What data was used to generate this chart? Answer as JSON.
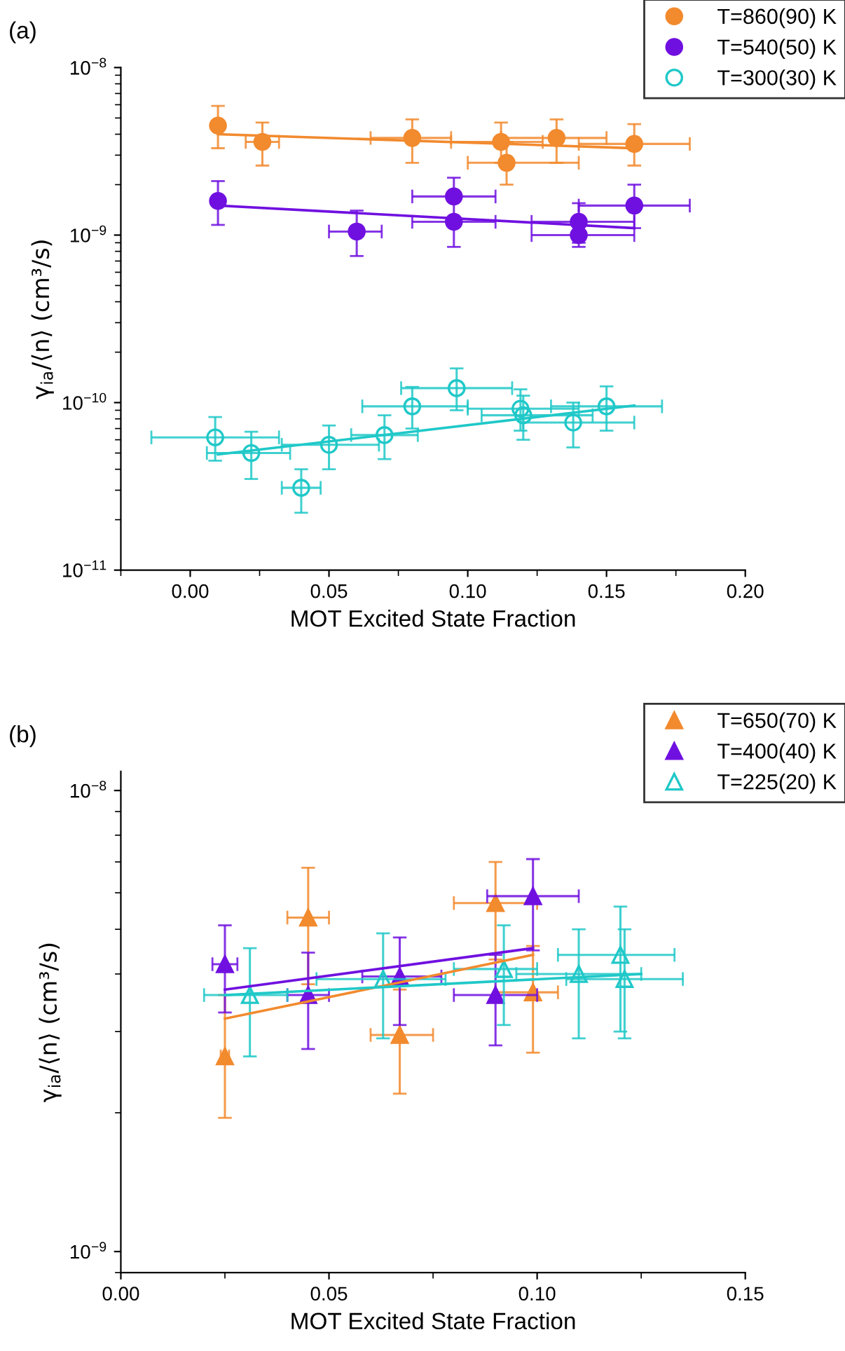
{
  "chart_data": [
    {
      "type": "scatter",
      "title": "(a)",
      "xlabel": "MOT Excited State Fraction",
      "ylabel": "γ$_{ia}$/⟨n⟩ (cm³/s)",
      "log": "y",
      "legend": "top right",
      "marker": "circle",
      "xlim": [
        -0.025,
        0.2
      ],
      "xticks": [
        {
          "value": 0,
          "label": "0.00"
        },
        {
          "value": 0.05,
          "label": "0.05"
        },
        {
          "value": 0.1,
          "label": "0.10"
        },
        {
          "value": 0.15,
          "label": "0.15"
        },
        {
          "value": 0.2,
          "label": "0.20"
        }
      ],
      "ylim": [
        1e-11,
        1e-08
      ],
      "yticks": [
        {
          "value": 1e-11,
          "label": "10$^{−11}$"
        },
        {
          "value": 1e-10,
          "label": "10$^{−10}$"
        },
        {
          "value": 1e-09,
          "label": "10$^{−9}$"
        },
        {
          "value": 1e-08,
          "label": "10$^{−8}$"
        }
      ],
      "series": [
        {
          "name": "T=860(90) K",
          "color": "#f28a2e",
          "x": [
            0.01,
            0.026,
            0.08,
            0.112,
            0.114,
            0.132,
            0.16
          ],
          "values": [
            4.5e-09,
            3.6e-09,
            3.8e-09,
            3.6e-09,
            2.7e-09,
            3.8e-09,
            3.5e-09
          ],
          "errors": [
            [
              3.3e-09,
              5.9e-09
            ],
            [
              2.6e-09,
              4.7e-09
            ],
            [
              2.7e-09,
              4.9e-09
            ],
            [
              2.7e-09,
              4.7e-09
            ],
            [
              2e-09,
              3.6e-09
            ],
            [
              2.7e-09,
              4.9e-09
            ],
            [
              2.6e-09,
              4.6e-09
            ]
          ],
          "xerrors": [
            null,
            [
              0.02,
              0.032
            ],
            [
              0.065,
              0.094
            ],
            [
              0.094,
              0.127
            ],
            [
              0.1,
              0.14
            ],
            [
              0.112,
              0.15
            ],
            [
              0.14,
              0.18
            ]
          ]
        },
        {
          "name": "T=540(50) K",
          "color": "#7010e0",
          "x": [
            0.01,
            0.06,
            0.095,
            0.095,
            0.14,
            0.14,
            0.16
          ],
          "values": [
            1.6e-09,
            1.05e-09,
            1.7e-09,
            1.2e-09,
            1.2e-09,
            1e-09,
            1.5e-09
          ],
          "errors": [
            [
              1.15e-09,
              2.1e-09
            ],
            [
              7.5e-10,
              1.4e-09
            ],
            [
              1.7e-09,
              2.2e-09
            ],
            [
              8.5e-10,
              1.6e-09
            ],
            [
              9e-10,
              1.55e-09
            ],
            [
              8.5e-10,
              1e-09
            ],
            [
              1.1e-09,
              2e-09
            ]
          ],
          "xerrors": [
            null,
            [
              0.05,
              0.069
            ],
            [
              0.08,
              0.11
            ],
            [
              0.08,
              0.11
            ],
            [
              0.123,
              0.16
            ],
            [
              0.123,
              0.16
            ],
            [
              0.14,
              0.18
            ]
          ]
        },
        {
          "name": "T=300(30) K",
          "color": "#20c8c8",
          "x": [
            0.009,
            0.022,
            0.04,
            0.05,
            0.07,
            0.08,
            0.096,
            0.119,
            0.12,
            0.138,
            0.15
          ],
          "values": [
            6.2e-11,
            5e-11,
            3.1e-11,
            5.6e-11,
            6.4e-11,
            9.5e-11,
            1.22e-10,
            9.2e-11,
            8.4e-11,
            7.6e-11,
            9.5e-11
          ],
          "errors": [
            [
              4.5e-11,
              8.2e-11
            ],
            [
              3.5e-11,
              6.7e-11
            ],
            [
              2.2e-11,
              4e-11
            ],
            [
              4e-11,
              7.3e-11
            ],
            [
              4.6e-11,
              8.4e-11
            ],
            [
              7e-11,
              1.24e-10
            ],
            [
              9e-11,
              1.6e-10
            ],
            [
              6.8e-11,
              1.2e-10
            ],
            [
              6e-11,
              1.1e-10
            ],
            [
              5.4e-11,
              1e-10
            ],
            [
              6.8e-11,
              1.25e-10
            ]
          ],
          "xerrors": [
            [
              -0.014,
              0.032
            ],
            [
              0.006,
              0.036
            ],
            [
              0.033,
              0.047
            ],
            [
              0.033,
              0.068
            ],
            [
              0.058,
              0.082
            ],
            [
              0.062,
              0.1
            ],
            [
              0.076,
              0.116
            ],
            [
              0.1,
              0.14
            ],
            [
              0.105,
              0.145
            ],
            [
              0.12,
              0.16
            ],
            [
              0.13,
              0.17
            ]
          ]
        },
        {
          "type": "line",
          "marker": "none",
          "color": "#f28a2e",
          "x": [
            0.01,
            0.16
          ],
          "values": [
            4e-09,
            3.3e-09
          ]
        },
        {
          "type": "line",
          "marker": "none",
          "color": "#7010e0",
          "x": [
            0.01,
            0.16
          ],
          "values": [
            1.5e-09,
            1.1e-09
          ]
        },
        {
          "type": "line",
          "marker": "none",
          "color": "#20c8c8",
          "x": [
            0.01,
            0.16
          ],
          "values": [
            4.9e-11,
            9.6e-11
          ]
        }
      ]
    },
    {
      "type": "scatter",
      "title": "(b)",
      "xlabel": "MOT Excited State Fraction",
      "ylabel": "γ$_{ia}$/⟨n⟩ (cm³/s)",
      "log": "y",
      "legend": "top right",
      "marker": "triangle",
      "xlim": [
        0,
        0.15
      ],
      "xticks": [
        {
          "value": 0,
          "label": "0.00"
        },
        {
          "value": 0.05,
          "label": "0.05"
        },
        {
          "value": 0.1,
          "label": "0.10"
        },
        {
          "value": 0.15,
          "label": "0.15"
        }
      ],
      "ylim": [
        9e-10,
        1.1e-08
      ],
      "yticks": [
        {
          "value": 1e-09,
          "label": "10$^{−9}$"
        },
        {
          "value": 1e-08,
          "label": "10$^{−8}$"
        }
      ],
      "series": [
        {
          "name": "T=650(70) K",
          "color": "#f28a2e",
          "x": [
            0.025,
            0.045,
            0.067,
            0.09,
            0.099
          ],
          "values": [
            2.65e-09,
            5.3e-09,
            2.95e-09,
            5.7e-09,
            3.65e-09
          ],
          "errors": [
            [
              1.95e-09,
              3.6e-09
            ],
            [
              3.8e-09,
              6.8e-09
            ],
            [
              2.2e-09,
              3.7e-09
            ],
            [
              4.3e-09,
              7e-09
            ],
            [
              2.7e-09,
              4.6e-09
            ]
          ],
          "xerrors": [
            [
              0.024,
              0.026
            ],
            [
              0.04,
              0.05
            ],
            [
              0.06,
              0.075
            ],
            [
              0.08,
              0.1
            ],
            [
              0.09,
              0.105
            ]
          ]
        },
        {
          "name": "T=400(40) K",
          "color": "#7010e0",
          "x": [
            0.025,
            0.045,
            0.067,
            0.09,
            0.099
          ],
          "values": [
            4.2e-09,
            3.6e-09,
            3.95e-09,
            3.6e-09,
            5.9e-09
          ],
          "errors": [
            [
              3.3e-09,
              5.1e-09
            ],
            [
              2.75e-09,
              4.45e-09
            ],
            [
              3.1e-09,
              4.8e-09
            ],
            [
              2.8e-09,
              4.4e-09
            ],
            [
              4.5e-09,
              7.1e-09
            ]
          ],
          "xerrors": [
            [
              0.022,
              0.028
            ],
            [
              0.04,
              0.05
            ],
            [
              0.058,
              0.077
            ],
            [
              0.08,
              0.1
            ],
            [
              0.088,
              0.11
            ]
          ]
        },
        {
          "name": "T=225(20) K",
          "color": "#20c8c8",
          "x": [
            0.031,
            0.063,
            0.092,
            0.11,
            0.12,
            0.121
          ],
          "values": [
            3.6e-09,
            3.9e-09,
            4.1e-09,
            4e-09,
            4.4e-09,
            3.9e-09
          ],
          "errors": [
            [
              2.65e-09,
              4.55e-09
            ],
            [
              2.9e-09,
              4.9e-09
            ],
            [
              3.1e-09,
              5.1e-09
            ],
            [
              2.9e-09,
              5e-09
            ],
            [
              3e-09,
              5.6e-09
            ],
            [
              2.9e-09,
              5e-09
            ]
          ],
          "xerrors": [
            [
              0.02,
              0.04
            ],
            [
              0.047,
              0.078
            ],
            [
              0.08,
              0.1
            ],
            [
              0.095,
              0.125
            ],
            [
              0.105,
              0.133
            ],
            [
              0.107,
              0.135
            ]
          ]
        },
        {
          "type": "line",
          "marker": "none",
          "color": "#f28a2e",
          "x": [
            0.025,
            0.099
          ],
          "values": [
            3.2e-09,
            4.4e-09
          ]
        },
        {
          "type": "line",
          "marker": "none",
          "color": "#7010e0",
          "x": [
            0.025,
            0.099
          ],
          "values": [
            3.7e-09,
            4.55e-09
          ]
        },
        {
          "type": "line",
          "marker": "none",
          "color": "#20c8c8",
          "x": [
            0.025,
            0.125
          ],
          "values": [
            3.6e-09,
            4e-09
          ]
        }
      ]
    }
  ]
}
